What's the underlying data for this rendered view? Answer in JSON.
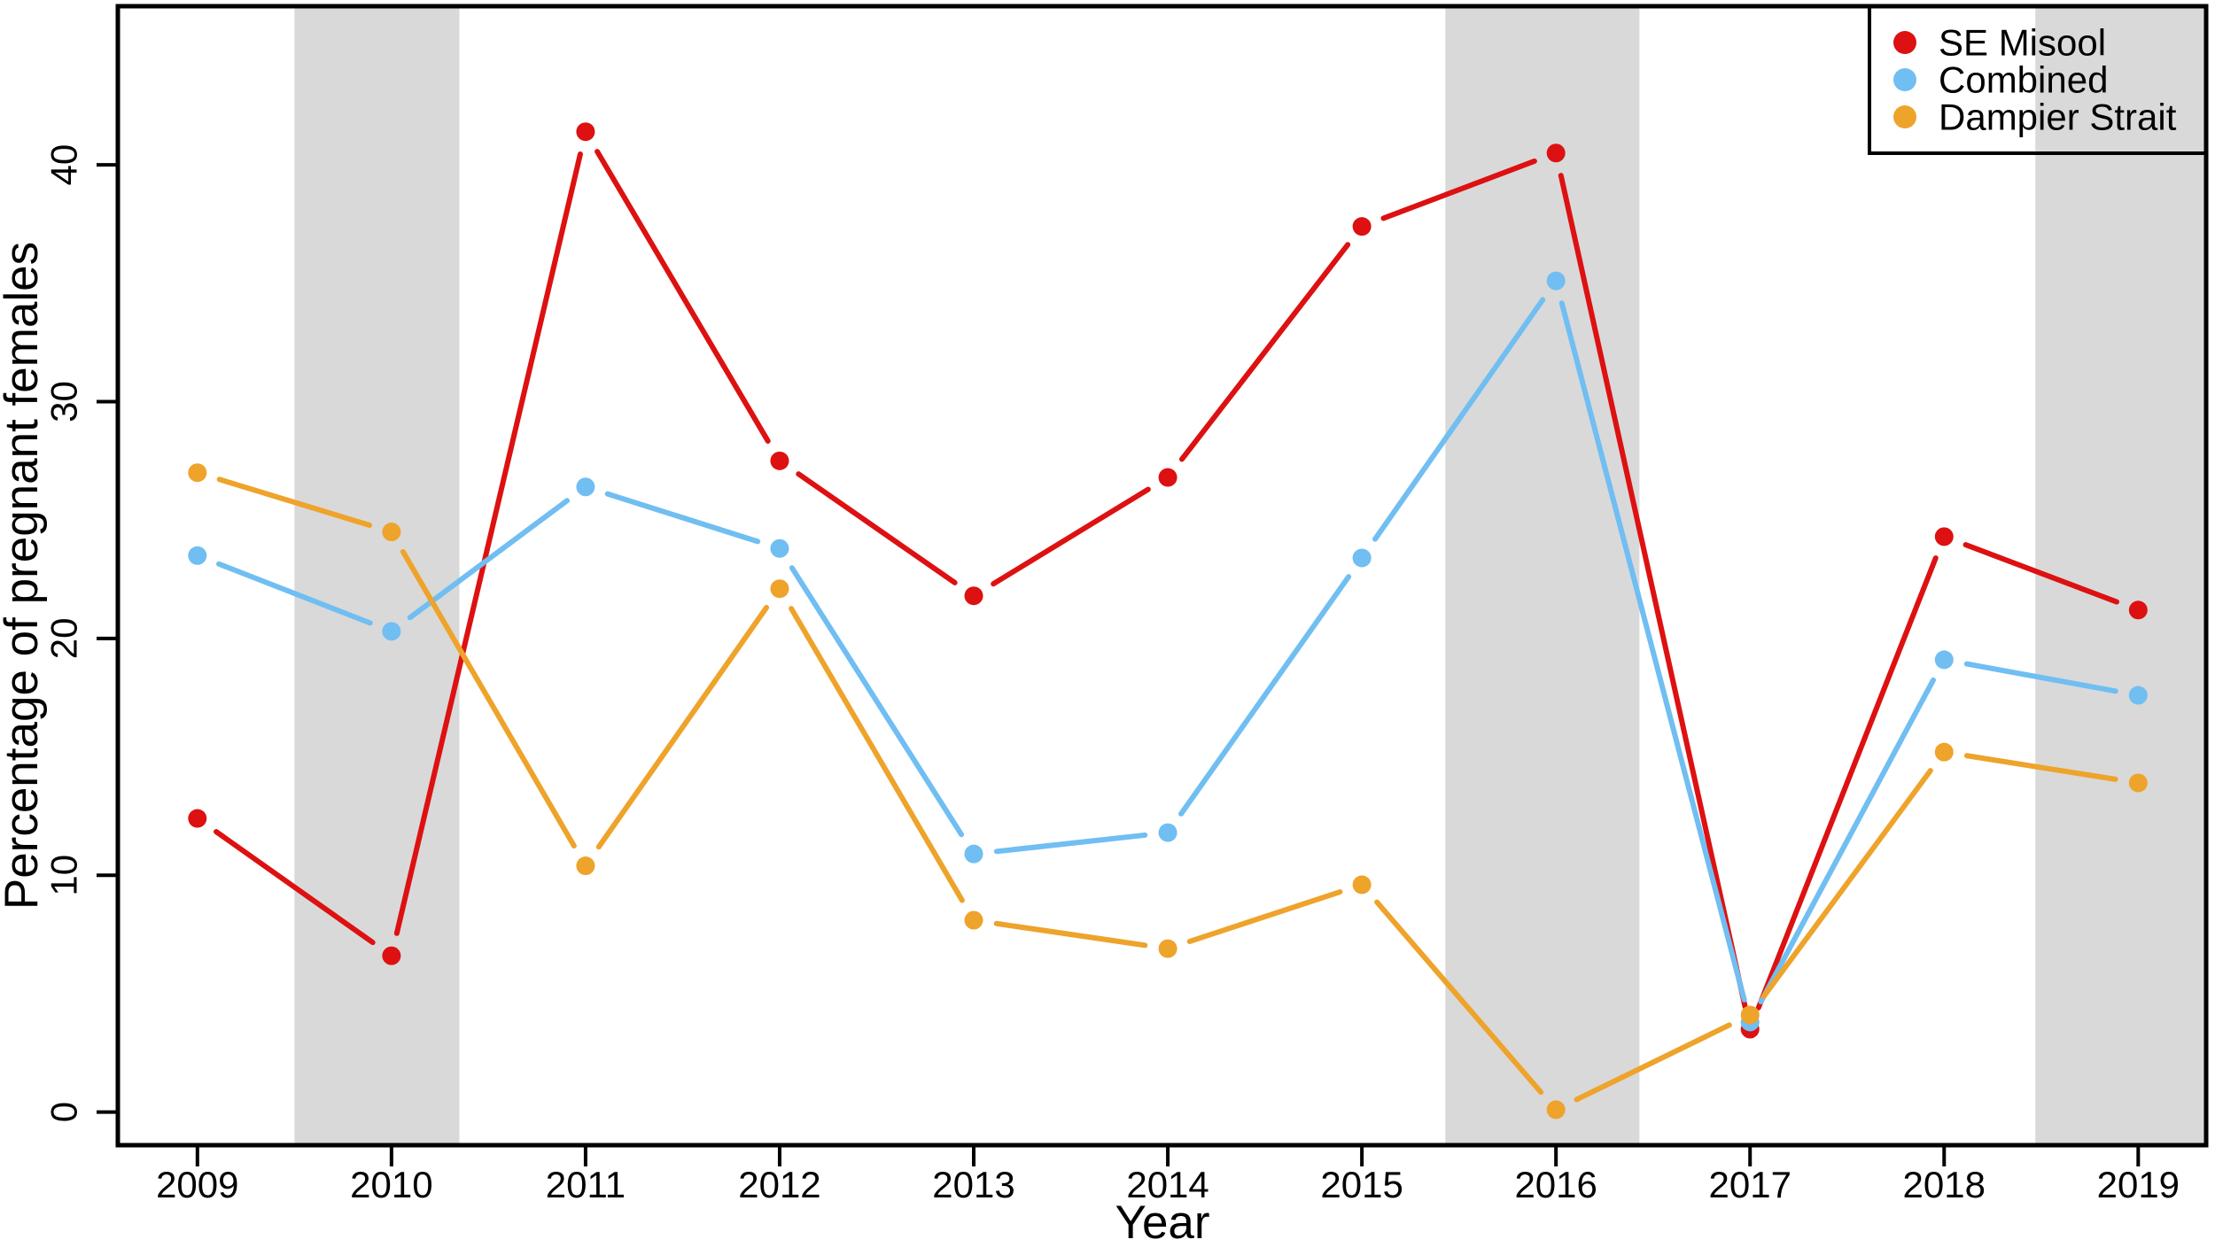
{
  "figure": {
    "background": "#FFFFFF",
    "frame_color": "#000000",
    "band_color": "#D9D9D9"
  },
  "chart_data": {
    "type": "line",
    "title": "",
    "xlabel": "Year",
    "ylabel": "Percentage of pregnant females",
    "categories": [
      2009,
      2010,
      2011,
      2012,
      2013,
      2014,
      2015,
      2016,
      2017,
      2018,
      2019
    ],
    "series": [
      {
        "name": "SE Misool",
        "color": "#DD1111",
        "values": [
          12.4,
          6.6,
          41.4,
          27.5,
          21.8,
          26.8,
          37.4,
          40.5,
          3.5,
          24.3,
          21.2
        ]
      },
      {
        "name": "Combined",
        "color": "#70BEF2",
        "values": [
          23.5,
          20.3,
          26.4,
          23.8,
          10.9,
          11.8,
          23.4,
          35.1,
          3.8,
          19.1,
          17.6
        ]
      },
      {
        "name": "Dampier Strait",
        "color": "#EEA32B",
        "values": [
          27.0,
          24.5,
          10.4,
          22.1,
          8.1,
          6.9,
          9.6,
          0.1,
          4.1,
          15.2,
          13.9
        ]
      }
    ],
    "xlim": [
      2008.59,
      2019.35
    ],
    "ylim": [
      -1.4,
      46.7
    ],
    "xticks": [
      2009,
      2010,
      2011,
      2012,
      2013,
      2014,
      2015,
      2016,
      2017,
      2018,
      2019
    ],
    "yticks": [
      0,
      10,
      20,
      30,
      40
    ],
    "shaded_bands": [
      {
        "from": 2009.5,
        "to": 2010.35
      },
      {
        "from": 2015.43,
        "to": 2016.43
      },
      {
        "from": 2018.47,
        "to": 2019.35
      }
    ],
    "grid": false,
    "legend_position": "top-right",
    "marker": "filled-circle",
    "line_style": "segments-with-gaps-at-points"
  }
}
